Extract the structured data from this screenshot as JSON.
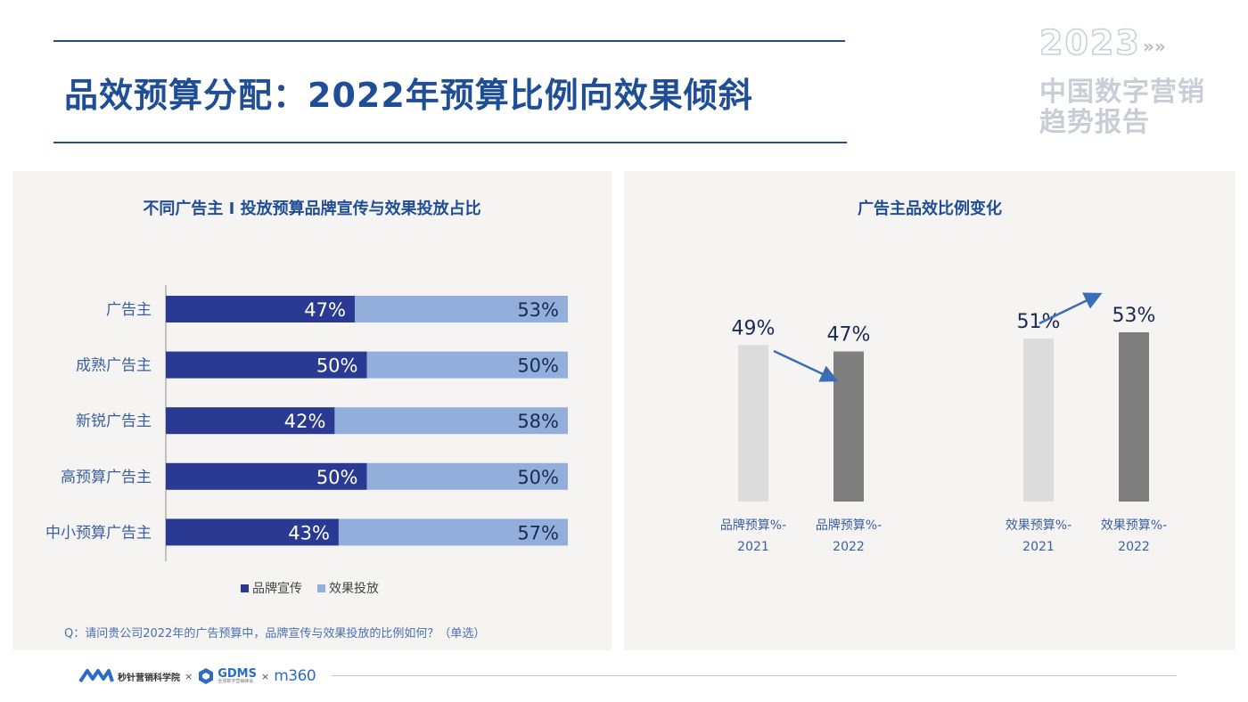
{
  "page": {
    "title": "品效预算分配：2022年预算比例向效果倾斜",
    "brand_year": "2023",
    "brand_arrows": "»»",
    "brand_line1": "中国数字营销",
    "brand_line2": "趋势报告",
    "footnote": "Q：请问贵公司2022年的广告预算中，品牌宣传与效果投放的比例如何？（单选）",
    "footer": {
      "logo1_text": "秒针营销科学院",
      "sep": "×",
      "logo2_text": "GDMS",
      "logo2_sub": "全球数字营销峰会",
      "logo3_text": "m360"
    }
  },
  "colors": {
    "brand": "#2a3a93",
    "effect": "#92aedb",
    "title_blue": "#1f4e96",
    "bar_light": "#dcdcdc",
    "bar_dark": "#7f7f7f",
    "arrow": "#3a6db5"
  },
  "chart_data": [
    {
      "type": "bar",
      "orientation": "horizontal",
      "stacked": true,
      "title": "不同广告主 I 投放预算品牌宣传与效果投放占比",
      "categories": [
        "广告主",
        "成熟广告主",
        "新锐广告主",
        "高预算广告主",
        "中小预算广告主"
      ],
      "series": [
        {
          "name": "品牌宣传",
          "values": [
            47,
            50,
            42,
            50,
            43
          ],
          "labels": [
            "47%",
            "50%",
            "42%",
            "50%",
            "43%"
          ]
        },
        {
          "name": "效果投放",
          "values": [
            53,
            50,
            58,
            50,
            57
          ],
          "labels": [
            "53%",
            "50%",
            "58%",
            "50%",
            "57%"
          ]
        }
      ],
      "xlim": [
        0,
        100
      ],
      "legend": "bottom",
      "grid": false
    },
    {
      "type": "bar",
      "title": "广告主品效比例变化",
      "categories": [
        [
          "品牌预算%-",
          "2021"
        ],
        [
          "品牌预算%-",
          "2022"
        ],
        [
          "效果预算%-",
          "2021"
        ],
        [
          "效果预算%-",
          "2022"
        ]
      ],
      "values": [
        49,
        47,
        51,
        53
      ],
      "labels": [
        "49%",
        "47%",
        "51%",
        "53%"
      ],
      "annotations": [
        "down-arrow over 品牌预算",
        "up-arrow over 效果预算"
      ],
      "grid": false
    }
  ]
}
